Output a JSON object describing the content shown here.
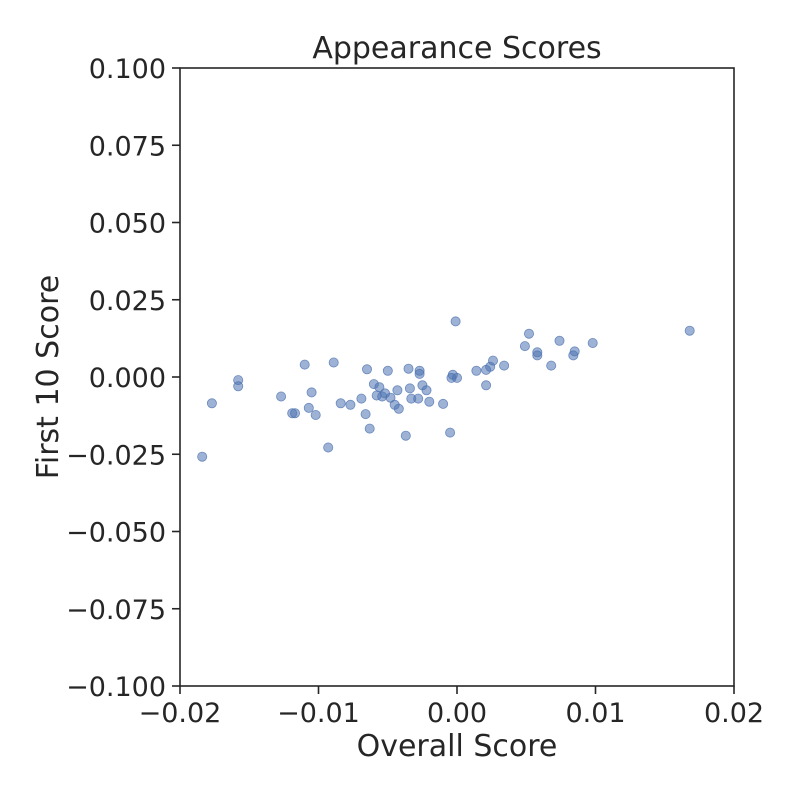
{
  "chart_data": {
    "type": "scatter",
    "title": "Appearance Scores",
    "xlabel": "Overall Score",
    "ylabel": "First 10 Score",
    "xlim": [
      -0.02,
      0.02
    ],
    "ylim": [
      -0.1,
      0.1
    ],
    "xticks": [
      -0.02,
      -0.01,
      0.0,
      0.01,
      0.02
    ],
    "xtick_labels": [
      "−0.02",
      "−0.01",
      "0.00",
      "0.01",
      "0.02"
    ],
    "yticks": [
      -0.1,
      -0.075,
      -0.05,
      -0.025,
      0.0,
      0.025,
      0.05,
      0.075,
      0.1
    ],
    "ytick_labels": [
      "−0.100",
      "−0.075",
      "−0.050",
      "−0.025",
      "0.000",
      "0.025",
      "0.050",
      "0.075",
      "0.100"
    ],
    "grid": false,
    "marker_color": "#4c72b0",
    "points": [
      [
        -0.0184,
        -0.0258
      ],
      [
        -0.0177,
        -0.0085
      ],
      [
        -0.0158,
        -0.001
      ],
      [
        -0.0158,
        -0.003
      ],
      [
        -0.0127,
        -0.0063
      ],
      [
        -0.0119,
        -0.0117
      ],
      [
        -0.0117,
        -0.0117
      ],
      [
        -0.011,
        0.004
      ],
      [
        -0.0107,
        -0.01
      ],
      [
        -0.0105,
        -0.005
      ],
      [
        -0.0102,
        -0.0123
      ],
      [
        -0.0093,
        -0.0228
      ],
      [
        -0.0089,
        0.0047
      ],
      [
        -0.0084,
        -0.0085
      ],
      [
        -0.0077,
        -0.009
      ],
      [
        -0.0069,
        -0.007
      ],
      [
        -0.0066,
        -0.012
      ],
      [
        -0.0065,
        0.0025
      ],
      [
        -0.0063,
        -0.0167
      ],
      [
        -0.006,
        -0.0023
      ],
      [
        -0.0058,
        -0.006
      ],
      [
        -0.0056,
        -0.0033
      ],
      [
        -0.0054,
        -0.0063
      ],
      [
        -0.0052,
        -0.0053
      ],
      [
        -0.005,
        0.002
      ],
      [
        -0.0048,
        -0.0067
      ],
      [
        -0.0045,
        -0.009
      ],
      [
        -0.0043,
        -0.0043
      ],
      [
        -0.0042,
        -0.0103
      ],
      [
        -0.0037,
        -0.019
      ],
      [
        -0.0035,
        0.0027
      ],
      [
        -0.0034,
        -0.0037
      ],
      [
        -0.0033,
        -0.007
      ],
      [
        -0.0028,
        -0.007
      ],
      [
        -0.0027,
        0.002
      ],
      [
        -0.0027,
        0.001
      ],
      [
        -0.0025,
        -0.0027
      ],
      [
        -0.0022,
        -0.0043
      ],
      [
        -0.002,
        -0.008
      ],
      [
        -0.001,
        -0.0087
      ],
      [
        -0.0005,
        -0.018
      ],
      [
        -0.0004,
        -0.0003
      ],
      [
        -0.0003,
        0.0007
      ],
      [
        -0.0001,
        0.018
      ],
      [
        0.0,
        -0.0003
      ],
      [
        0.0014,
        0.002
      ],
      [
        0.0021,
        -0.0027
      ],
      [
        0.0021,
        0.0023
      ],
      [
        0.0024,
        0.0033
      ],
      [
        0.0026,
        0.0053
      ],
      [
        0.0034,
        0.0037
      ],
      [
        0.0049,
        0.01
      ],
      [
        0.0052,
        0.014
      ],
      [
        0.0058,
        0.008
      ],
      [
        0.0058,
        0.007
      ],
      [
        0.0068,
        0.0037
      ],
      [
        0.0074,
        0.0117
      ],
      [
        0.0084,
        0.007
      ],
      [
        0.0085,
        0.0083
      ],
      [
        0.0098,
        0.011
      ],
      [
        0.0168,
        0.015
      ]
    ]
  }
}
